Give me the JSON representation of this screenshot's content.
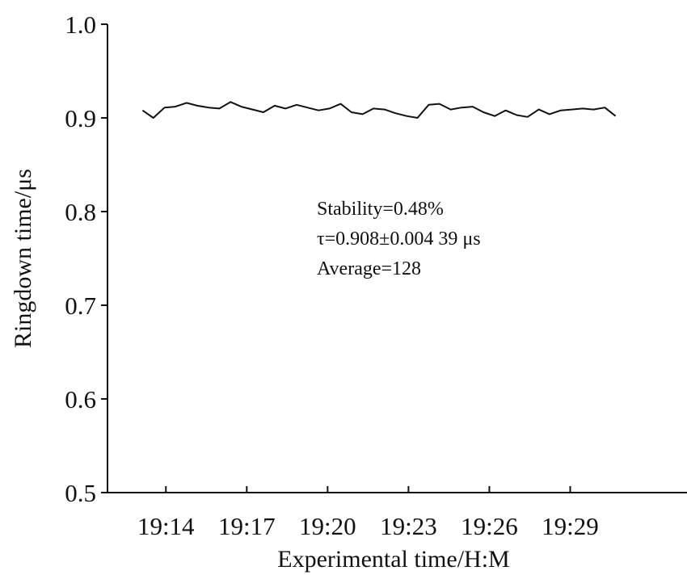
{
  "chart_data": {
    "type": "line",
    "title": "",
    "xlabel": "Experimental time/H:M",
    "ylabel": "Ringdown time/μs",
    "ylim": [
      0.5,
      1.0
    ],
    "xlim": [
      "19:11:50",
      "19:33:20"
    ],
    "y_ticks": [
      "0.5",
      "0.6",
      "0.7",
      "0.8",
      "0.9",
      "1.0"
    ],
    "x_ticks": [
      "19:14",
      "19:17",
      "19:20",
      "19:23",
      "19:26",
      "19:29"
    ],
    "grid": false,
    "legend": "none",
    "line_color": "#111111",
    "annotations": [
      "Stability=0.48%",
      "τ=0.908±0.004 39 μs",
      "Average=128"
    ],
    "series": [
      {
        "color": "#111111",
        "x": [
          "19:13:08",
          "19:13:32",
          "19:13:57",
          "19:14:21",
          "19:14:46",
          "19:15:10",
          "19:15:35",
          "19:15:59",
          "19:16:24",
          "19:16:48",
          "19:17:13",
          "19:17:37",
          "19:18:02",
          "19:18:26",
          "19:18:51",
          "19:19:15",
          "19:19:40",
          "19:20:04",
          "19:20:29",
          "19:20:53",
          "19:21:18",
          "19:21:42",
          "19:22:07",
          "19:22:31",
          "19:22:56",
          "19:23:20",
          "19:23:45",
          "19:24:09",
          "19:24:34",
          "19:24:58",
          "19:25:23",
          "19:25:47",
          "19:26:12",
          "19:26:36",
          "19:27:01",
          "19:27:25",
          "19:27:50",
          "19:28:14",
          "19:28:39",
          "19:29:03",
          "19:29:28",
          "19:29:52",
          "19:30:17",
          "19:30:41"
        ],
        "y": [
          0.908,
          0.9,
          0.911,
          0.912,
          0.916,
          0.913,
          0.911,
          0.91,
          0.917,
          0.912,
          0.909,
          0.906,
          0.913,
          0.91,
          0.914,
          0.911,
          0.908,
          0.91,
          0.915,
          0.906,
          0.904,
          0.91,
          0.909,
          0.905,
          0.902,
          0.9,
          0.914,
          0.915,
          0.909,
          0.911,
          0.912,
          0.906,
          0.902,
          0.908,
          0.903,
          0.901,
          0.909,
          0.904,
          0.908,
          0.909,
          0.91,
          0.909,
          0.911,
          0.902
        ]
      }
    ]
  }
}
